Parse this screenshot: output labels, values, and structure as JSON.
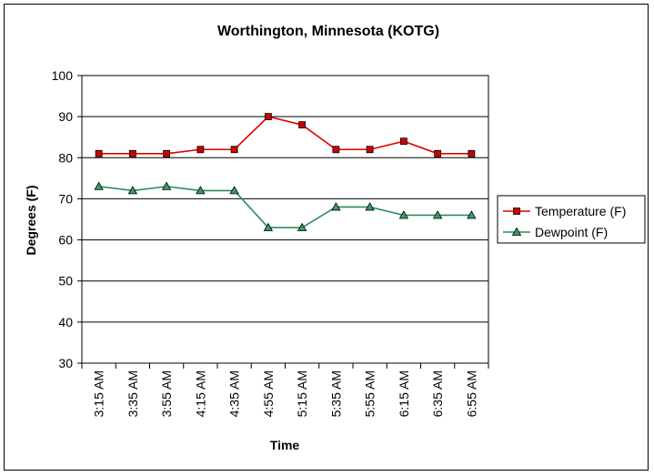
{
  "chart_data": {
    "type": "line",
    "title": "Worthington, Minnesota (KOTG)",
    "xlabel": "Time",
    "ylabel": "Degrees (F)",
    "categories": [
      "3:15 AM",
      "3:35 AM",
      "3:55 AM",
      "4:15 AM",
      "4:35 AM",
      "4:55 AM",
      "5:15 AM",
      "5:35 AM",
      "5:55 AM",
      "6:15 AM",
      "6:35 AM",
      "6:55 AM"
    ],
    "ylim": [
      30,
      100
    ],
    "yticks": [
      "30",
      "40",
      "50",
      "60",
      "70",
      "80",
      "90",
      "100"
    ],
    "grid": "horizontal",
    "legend_position": "right",
    "series": [
      {
        "name": "Temperature (F)",
        "color": "#dd0000",
        "marker": "square",
        "marker_color": "#cc0000",
        "values": [
          81,
          81,
          81,
          82,
          82,
          90,
          88,
          82,
          82,
          84,
          81,
          81
        ]
      },
      {
        "name": "Dewpoint (F)",
        "color": "#2e8b57",
        "marker": "triangle",
        "marker_color": "#3a9a6a",
        "values": [
          73,
          72,
          73,
          72,
          72,
          63,
          63,
          68,
          68,
          66,
          66,
          66
        ]
      }
    ]
  }
}
